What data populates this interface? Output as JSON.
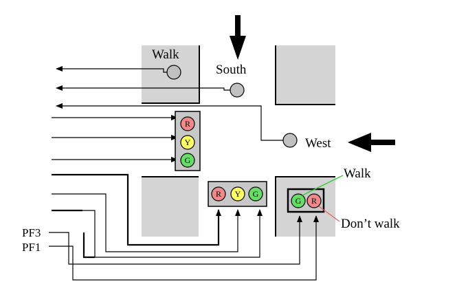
{
  "labels": {
    "walk_top": "Walk",
    "south": "South",
    "west": "West",
    "walk_right": "Walk",
    "dont_walk": "Don’t walk",
    "pf3": "PF3",
    "pf1": "PF1"
  },
  "lamps": {
    "vertical": [
      "R",
      "Y",
      "G"
    ],
    "horizontal": [
      "R",
      "Y",
      "G"
    ],
    "pedestrian": [
      "G",
      "R"
    ]
  },
  "colors": {
    "red_lamp": "#f08a8a",
    "yellow_lamp": "#ffff66",
    "green_lamp": "#66dd66",
    "block_gray": "#d4d4d4",
    "sensor_gray": "#c0c0c0",
    "walk_line": "#33cc33",
    "dont_walk_line": "#e06060"
  }
}
